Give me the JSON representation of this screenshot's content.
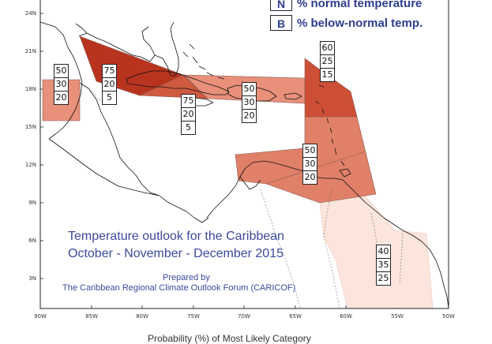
{
  "legend": [
    {
      "key": "N",
      "text": "% normal temperature"
    },
    {
      "key": "B",
      "text": "% below-normal temp."
    }
  ],
  "title": {
    "line1": "Temperature outlook for the Caribbean",
    "line2": "October - November - December 2015"
  },
  "prepared": {
    "line1": "Prepared by",
    "line2": "The Caribbean Regional Climate Outlook Forum (CARICOF)"
  },
  "footer": "Probability (%) of Most Likely Category",
  "axis": {
    "lat_labels": [
      "24N",
      "21N",
      "18N",
      "15N",
      "12N",
      "9N",
      "6N",
      "3N"
    ],
    "lon_labels": [
      "90W",
      "85W",
      "80W",
      "75W",
      "70W",
      "65W",
      "60W",
      "55W",
      "50W"
    ]
  },
  "colors": {
    "above_strong": "#b8341f",
    "above_medium": "#d9664d",
    "above_light": "#e8907a",
    "above_faint": "#fbe5dc",
    "text_blue": "#3b4a9c"
  },
  "regions": [
    {
      "name": "belize-honduras",
      "probs": [
        "50",
        "30",
        "20"
      ]
    },
    {
      "name": "cayman-jamaica",
      "probs": [
        "75",
        "20",
        "5"
      ]
    },
    {
      "name": "central-cuba-bahamas",
      "probs": [
        "75",
        "20",
        "5"
      ]
    },
    {
      "name": "hispaniola-puerto-rico",
      "probs": [
        "50",
        "30",
        "20"
      ]
    },
    {
      "name": "leeward-islands",
      "probs": [
        "60",
        "25",
        "15"
      ]
    },
    {
      "name": "windwards-abc",
      "probs": [
        "50",
        "30",
        "20"
      ]
    },
    {
      "name": "guianas",
      "probs": [
        "40",
        "35",
        "25"
      ]
    }
  ]
}
